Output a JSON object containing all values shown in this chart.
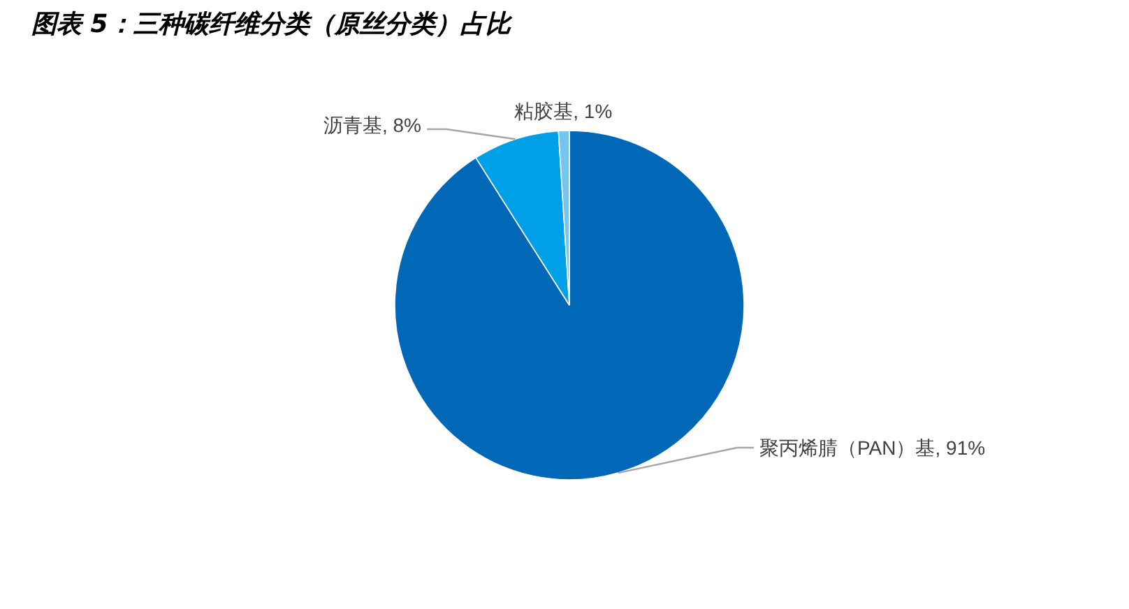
{
  "chart_data": {
    "type": "pie",
    "title": "图表 5：三种碳纤维分类（原丝分类）占比",
    "categories": [
      "聚丙烯腈（PAN）基",
      "沥青基",
      "粘胶基"
    ],
    "values": [
      91,
      8,
      1
    ],
    "colors": [
      "#0068b7",
      "#00a0e9",
      "#74c5f0"
    ],
    "value_labels": [
      "91%",
      "8%",
      "1%"
    ]
  }
}
